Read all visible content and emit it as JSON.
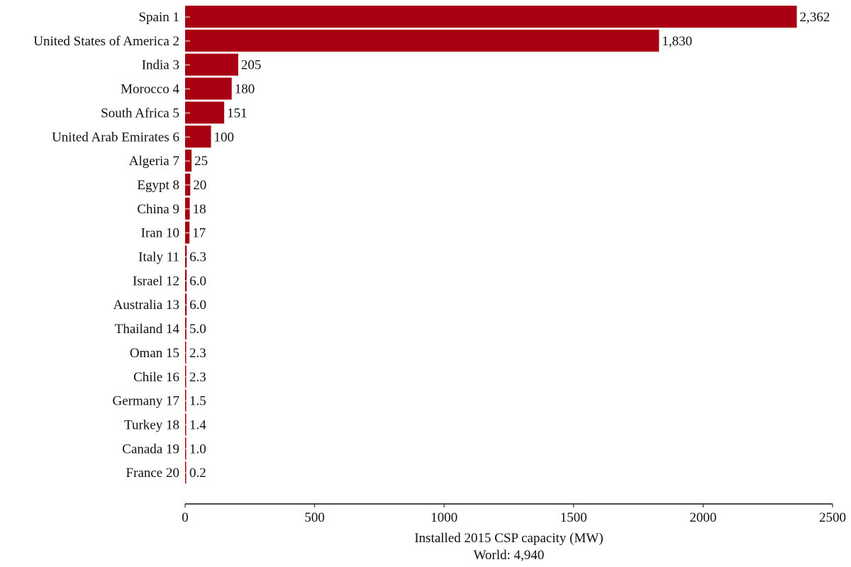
{
  "chart_data": {
    "type": "bar",
    "orientation": "horizontal",
    "categories": [
      "Spain 1",
      "United States of America 2",
      "India 3",
      "Morocco 4",
      "South Africa 5",
      "United Arab Emirates 6",
      "Algeria 7",
      "Egypt 8",
      "China 9",
      "Iran 10",
      "Italy 11",
      "Israel 12",
      "Australia 13",
      "Thailand 14",
      "Oman 15",
      "Chile 16",
      "Germany 17",
      "Turkey 18",
      "Canada 19",
      "France 20"
    ],
    "values": [
      2362,
      1830,
      205,
      180,
      151,
      100,
      25,
      20,
      18,
      17,
      6.3,
      6.0,
      6.0,
      5.0,
      2.3,
      2.3,
      1.5,
      1.4,
      1.0,
      0.2
    ],
    "value_labels": [
      "2,362",
      "1,830",
      "205",
      "180",
      "151",
      "100",
      "25",
      "20",
      "18",
      "17",
      "6.3",
      "6.0",
      "6.0",
      "5.0",
      "2.3",
      "2.3",
      "1.5",
      "1.4",
      "1.0",
      "0.2"
    ],
    "xlabel": "Installed 2015 CSP capacity (MW)",
    "xlabel_line2": "World: 4,940",
    "xlim": [
      0,
      2500
    ],
    "xticks": [
      0,
      500,
      1000,
      1500,
      2000,
      2500
    ],
    "xtick_labels": [
      "0",
      "500",
      "1000",
      "1500",
      "2000",
      "2500"
    ],
    "grid": false,
    "bar_color": "#a80012"
  }
}
